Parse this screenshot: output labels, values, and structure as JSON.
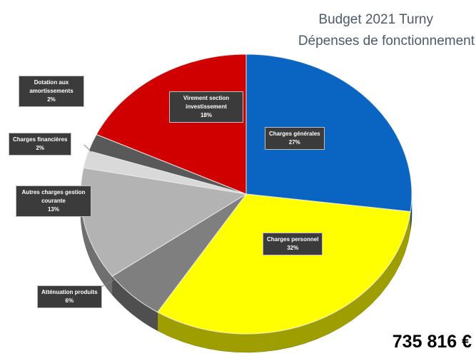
{
  "title_line1": "Budget 2021 Turny",
  "title_line2": "Dépenses de fonctionnement",
  "total": "735 816 €",
  "chart_data": {
    "type": "pie",
    "title": "Budget 2021 Turny — Dépenses de fonctionnement",
    "style": "3d-pie",
    "slices": [
      {
        "label": "Charges générales",
        "pct_label": "27%",
        "value": 27,
        "color": "#0a64c2"
      },
      {
        "label": "Charges personnel",
        "pct_label": "32%",
        "value": 32,
        "color": "#ffff00"
      },
      {
        "label": "Atténuation produits",
        "pct_label": "6%",
        "value": 6,
        "color": "#7f7f7f"
      },
      {
        "label": "Autres charges gestion courante",
        "pct_label": "13%",
        "value": 13,
        "color": "#b3b3b3"
      },
      {
        "label": "Charges financières",
        "pct_label": "2%",
        "value": 2,
        "color": "#d9d9d9"
      },
      {
        "label": "Dotation aux amortissements",
        "pct_label": "2%",
        "value": 2,
        "color": "#595959"
      },
      {
        "label": "Virement section investissement",
        "pct_label": "18%",
        "value": 18,
        "color": "#d00000"
      }
    ]
  }
}
